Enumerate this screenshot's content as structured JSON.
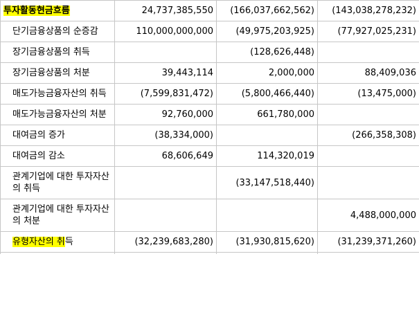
{
  "highlight_color": "#ffff00",
  "table": {
    "columns": [
      "label",
      "value1",
      "value2",
      "value3"
    ],
    "rows": [
      {
        "indent": false,
        "bold": true,
        "parts": [
          {
            "t": "투자활동현금흐름",
            "hl": true
          }
        ],
        "v": [
          "24,737,385,550",
          "(166,037,662,562)",
          "(143,038,278,232)"
        ]
      },
      {
        "indent": true,
        "bold": false,
        "parts": [
          {
            "t": "단기금융상품의 순증감",
            "hl": false
          }
        ],
        "v": [
          "110,000,000,000",
          "(49,975,203,925)",
          "(77,927,025,231)"
        ]
      },
      {
        "indent": true,
        "bold": false,
        "parts": [
          {
            "t": "장기금융상품의 취득",
            "hl": false
          }
        ],
        "v": [
          "",
          "(128,626,448)",
          ""
        ]
      },
      {
        "indent": true,
        "bold": false,
        "parts": [
          {
            "t": "장기금융상품의 처분",
            "hl": false
          }
        ],
        "v": [
          "39,443,114",
          "2,000,000",
          "88,409,036"
        ]
      },
      {
        "indent": true,
        "bold": false,
        "parts": [
          {
            "t": "매도가능금융자산의 취득",
            "hl": false
          }
        ],
        "v": [
          "(7,599,831,472)",
          "(5,800,466,440)",
          "(13,475,000)"
        ]
      },
      {
        "indent": true,
        "bold": false,
        "parts": [
          {
            "t": "매도가능금융자산의 처분",
            "hl": false
          }
        ],
        "v": [
          "92,760,000",
          "661,780,000",
          ""
        ]
      },
      {
        "indent": true,
        "bold": false,
        "parts": [
          {
            "t": "대여금의 증가",
            "hl": false
          }
        ],
        "v": [
          "(38,334,000)",
          "",
          "(266,358,308)"
        ]
      },
      {
        "indent": true,
        "bold": false,
        "parts": [
          {
            "t": "대여금의 감소",
            "hl": false
          }
        ],
        "v": [
          "68,606,649",
          "114,320,019",
          ""
        ]
      },
      {
        "indent": true,
        "bold": false,
        "parts": [
          {
            "t": "관계기업에 대한 투자자산의 취득",
            "hl": false
          }
        ],
        "v": [
          "",
          "(33,147,518,440)",
          ""
        ]
      },
      {
        "indent": true,
        "bold": false,
        "parts": [
          {
            "t": "관계기업에 대한 투자자산의 처분",
            "hl": false
          }
        ],
        "v": [
          "",
          "",
          "4,488,000,000"
        ]
      },
      {
        "indent": true,
        "bold": false,
        "parts": [
          {
            "t": "유형자산의 취",
            "hl": true
          },
          {
            "t": "득",
            "hl": false
          }
        ],
        "v": [
          "(32,239,683,280)",
          "(31,930,815,620)",
          "(31,239,371,260)"
        ]
      },
      {
        "indent": true,
        "bold": false,
        "partial": true,
        "parts": [],
        "v": [
          "",
          "",
          ""
        ]
      }
    ]
  }
}
